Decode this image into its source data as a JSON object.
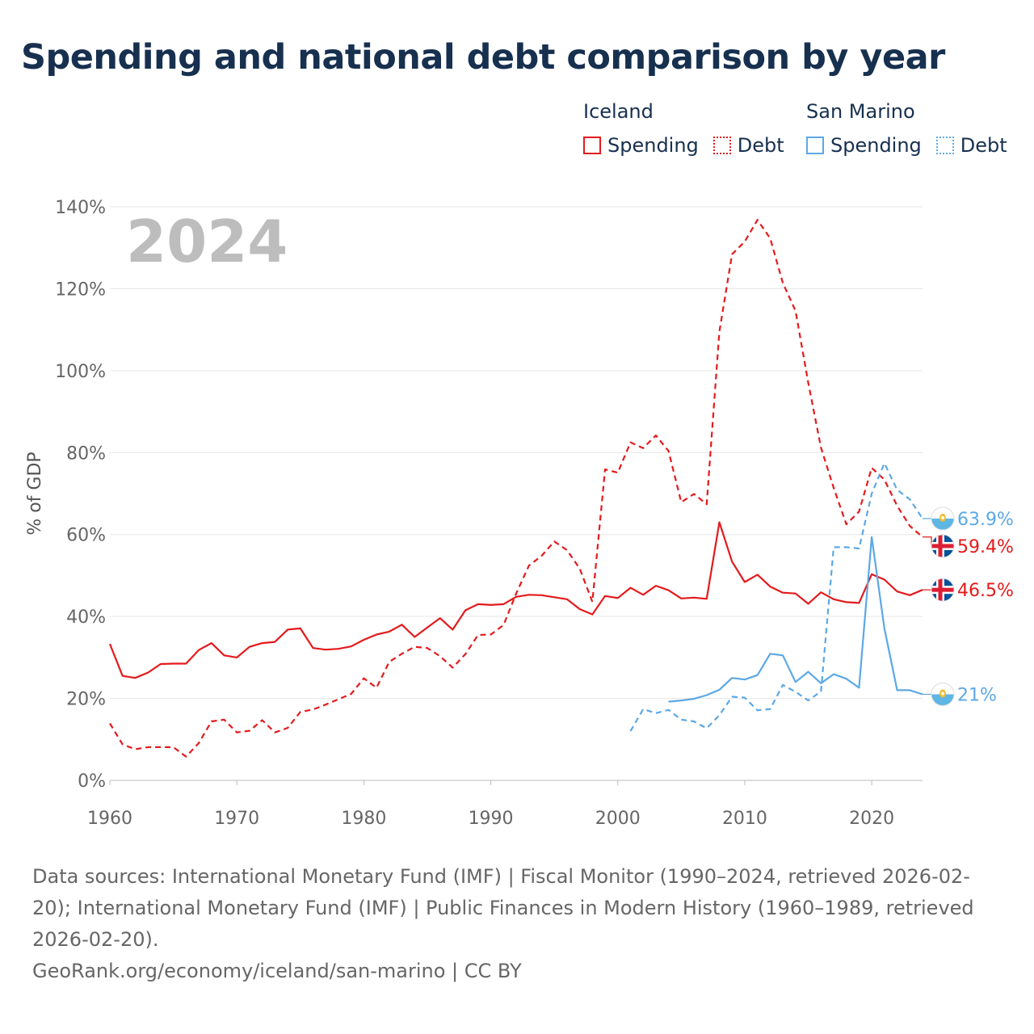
{
  "title": "Spending and national debt comparison by year",
  "legend": {
    "groups": [
      {
        "name": "Iceland",
        "color": "#e41a1c",
        "items": [
          {
            "label": "Spending",
            "style": "solid"
          },
          {
            "label": "Debt",
            "style": "dotted"
          }
        ]
      },
      {
        "name": "San Marino",
        "color": "#5ca8e6",
        "items": [
          {
            "label": "Spending",
            "style": "solid"
          },
          {
            "label": "Debt",
            "style": "dotted"
          }
        ]
      }
    ]
  },
  "footer": {
    "sources": "Data sources: International Monetary Fund (IMF) | Fiscal Monitor (1990–2024, retrieved 2026-02-20); International Monetary Fund (IMF) | Public Finances in Modern History (1960–1989, retrieved 2026-02-20).",
    "credit": "GeoRank.org/economy/iceland/san-marino | CC BY"
  },
  "chart_data": {
    "type": "line",
    "title": "Spending and national debt comparison by year",
    "year_label": "2024",
    "xlabel": "",
    "ylabel": "% of GDP",
    "xlim": [
      1960,
      2024
    ],
    "ylim": [
      0,
      140
    ],
    "x_ticks": [
      1960,
      1970,
      1980,
      1990,
      2000,
      2010,
      2020
    ],
    "y_ticks": [
      0,
      20,
      40,
      60,
      80,
      100,
      120,
      140
    ],
    "y_tick_labels": [
      "0%",
      "20%",
      "40%",
      "60%",
      "80%",
      "100%",
      "120%",
      "140%"
    ],
    "series": [
      {
        "name": "Iceland Spending",
        "country": "Iceland",
        "metric": "Spending",
        "color": "#e41a1c",
        "dashed": false,
        "end_label": "46.5%",
        "flag": "iceland",
        "points": [
          [
            1960,
            33.3
          ],
          [
            1961,
            25.5
          ],
          [
            1962,
            25.0
          ],
          [
            1963,
            26.3
          ],
          [
            1964,
            28.4
          ],
          [
            1965,
            28.5
          ],
          [
            1966,
            28.5
          ],
          [
            1967,
            31.8
          ],
          [
            1968,
            33.5
          ],
          [
            1969,
            30.5
          ],
          [
            1970,
            30.0
          ],
          [
            1971,
            32.6
          ],
          [
            1972,
            33.5
          ],
          [
            1973,
            33.8
          ],
          [
            1974,
            36.8
          ],
          [
            1975,
            37.1
          ],
          [
            1976,
            32.3
          ],
          [
            1977,
            31.9
          ],
          [
            1978,
            32.1
          ],
          [
            1979,
            32.7
          ],
          [
            1980,
            34.3
          ],
          [
            1981,
            35.6
          ],
          [
            1982,
            36.3
          ],
          [
            1983,
            38.0
          ],
          [
            1984,
            35.0
          ],
          [
            1985,
            37.3
          ],
          [
            1986,
            39.6
          ],
          [
            1987,
            36.8
          ],
          [
            1988,
            41.5
          ],
          [
            1989,
            43.0
          ],
          [
            1990,
            42.8
          ],
          [
            1991,
            43.0
          ],
          [
            1992,
            44.8
          ],
          [
            1993,
            45.3
          ],
          [
            1994,
            45.2
          ],
          [
            1995,
            44.7
          ],
          [
            1996,
            44.2
          ],
          [
            1997,
            41.8
          ],
          [
            1998,
            40.5
          ],
          [
            1999,
            45.0
          ],
          [
            2000,
            44.5
          ],
          [
            2001,
            47.0
          ],
          [
            2002,
            45.3
          ],
          [
            2003,
            47.5
          ],
          [
            2004,
            46.4
          ],
          [
            2005,
            44.4
          ],
          [
            2006,
            44.6
          ],
          [
            2007,
            44.3
          ],
          [
            2008,
            63.0
          ],
          [
            2009,
            53.4
          ],
          [
            2010,
            48.4
          ],
          [
            2011,
            50.2
          ],
          [
            2012,
            47.3
          ],
          [
            2013,
            45.8
          ],
          [
            2014,
            45.6
          ],
          [
            2015,
            43.1
          ],
          [
            2016,
            45.9
          ],
          [
            2017,
            44.2
          ],
          [
            2018,
            43.5
          ],
          [
            2019,
            43.3
          ],
          [
            2020,
            50.3
          ],
          [
            2021,
            49.0
          ],
          [
            2022,
            46.1
          ],
          [
            2023,
            45.2
          ],
          [
            2024,
            46.5
          ]
        ]
      },
      {
        "name": "Iceland Debt",
        "country": "Iceland",
        "metric": "Debt",
        "color": "#e41a1c",
        "dashed": true,
        "end_label": "59.4%",
        "flag": "iceland",
        "points": [
          [
            1960,
            13.9
          ],
          [
            1961,
            8.8
          ],
          [
            1962,
            7.6
          ],
          [
            1963,
            8.1
          ],
          [
            1964,
            8.1
          ],
          [
            1965,
            8.1
          ],
          [
            1966,
            5.8
          ],
          [
            1967,
            9.1
          ],
          [
            1968,
            14.4
          ],
          [
            1969,
            14.8
          ],
          [
            1970,
            11.7
          ],
          [
            1971,
            12.1
          ],
          [
            1972,
            14.7
          ],
          [
            1973,
            11.7
          ],
          [
            1974,
            12.8
          ],
          [
            1975,
            16.7
          ],
          [
            1976,
            17.3
          ],
          [
            1977,
            18.5
          ],
          [
            1978,
            19.8
          ],
          [
            1979,
            21.1
          ],
          [
            1980,
            24.9
          ],
          [
            1981,
            22.6
          ],
          [
            1982,
            28.9
          ],
          [
            1983,
            30.9
          ],
          [
            1984,
            32.6
          ],
          [
            1985,
            32.3
          ],
          [
            1986,
            30.3
          ],
          [
            1987,
            27.5
          ],
          [
            1988,
            30.8
          ],
          [
            1989,
            35.5
          ],
          [
            1990,
            35.6
          ],
          [
            1991,
            37.9
          ],
          [
            1992,
            45.6
          ],
          [
            1993,
            52.4
          ],
          [
            1994,
            54.8
          ],
          [
            1995,
            58.3
          ],
          [
            1996,
            56.2
          ],
          [
            1997,
            51.7
          ],
          [
            1998,
            43.6
          ],
          [
            1999,
            75.9
          ],
          [
            2000,
            75.1
          ],
          [
            2001,
            82.5
          ],
          [
            2002,
            81.1
          ],
          [
            2003,
            84.2
          ],
          [
            2004,
            80.4
          ],
          [
            2005,
            67.9
          ],
          [
            2006,
            69.9
          ],
          [
            2007,
            67.4
          ],
          [
            2008,
            109.5
          ],
          [
            2009,
            128.4
          ],
          [
            2010,
            131.5
          ],
          [
            2011,
            136.8
          ],
          [
            2012,
            132.3
          ],
          [
            2013,
            121.4
          ],
          [
            2014,
            114.6
          ],
          [
            2015,
            97.1
          ],
          [
            2016,
            81.2
          ],
          [
            2017,
            71.4
          ],
          [
            2018,
            62.5
          ],
          [
            2019,
            65.6
          ],
          [
            2020,
            76.3
          ],
          [
            2021,
            73.4
          ],
          [
            2022,
            67.0
          ],
          [
            2023,
            62.1
          ],
          [
            2024,
            59.4
          ]
        ]
      },
      {
        "name": "San Marino Spending",
        "country": "San Marino",
        "metric": "Spending",
        "color": "#5ca8e6",
        "dashed": false,
        "end_label": "21%",
        "flag": "san-marino",
        "points": [
          [
            2004,
            19.2
          ],
          [
            2005,
            19.5
          ],
          [
            2006,
            19.9
          ],
          [
            2007,
            20.8
          ],
          [
            2008,
            22.1
          ],
          [
            2009,
            25.0
          ],
          [
            2010,
            24.6
          ],
          [
            2011,
            25.7
          ],
          [
            2012,
            30.9
          ],
          [
            2013,
            30.5
          ],
          [
            2014,
            24.0
          ],
          [
            2015,
            26.5
          ],
          [
            2016,
            23.7
          ],
          [
            2017,
            25.9
          ],
          [
            2018,
            24.8
          ],
          [
            2019,
            22.6
          ],
          [
            2020,
            59.4
          ],
          [
            2021,
            37.1
          ],
          [
            2022,
            22.0
          ],
          [
            2023,
            22.0
          ],
          [
            2024,
            21.0
          ]
        ]
      },
      {
        "name": "San Marino Debt",
        "country": "San Marino",
        "metric": "Debt",
        "color": "#5ca8e6",
        "dashed": true,
        "end_label": "63.9%",
        "flag": "san-marino",
        "points": [
          [
            2001,
            12.0
          ],
          [
            2002,
            17.4
          ],
          [
            2003,
            16.4
          ],
          [
            2004,
            17.2
          ],
          [
            2005,
            14.8
          ],
          [
            2006,
            14.4
          ],
          [
            2007,
            12.7
          ],
          [
            2008,
            15.9
          ],
          [
            2009,
            20.4
          ],
          [
            2010,
            20.2
          ],
          [
            2011,
            17.1
          ],
          [
            2012,
            17.4
          ],
          [
            2013,
            23.3
          ],
          [
            2014,
            21.6
          ],
          [
            2015,
            19.5
          ],
          [
            2016,
            21.7
          ],
          [
            2017,
            56.9
          ],
          [
            2018,
            56.9
          ],
          [
            2019,
            56.6
          ],
          [
            2020,
            70.0
          ],
          [
            2021,
            77.4
          ],
          [
            2022,
            70.9
          ],
          [
            2023,
            68.6
          ],
          [
            2024,
            63.9
          ]
        ]
      }
    ]
  }
}
